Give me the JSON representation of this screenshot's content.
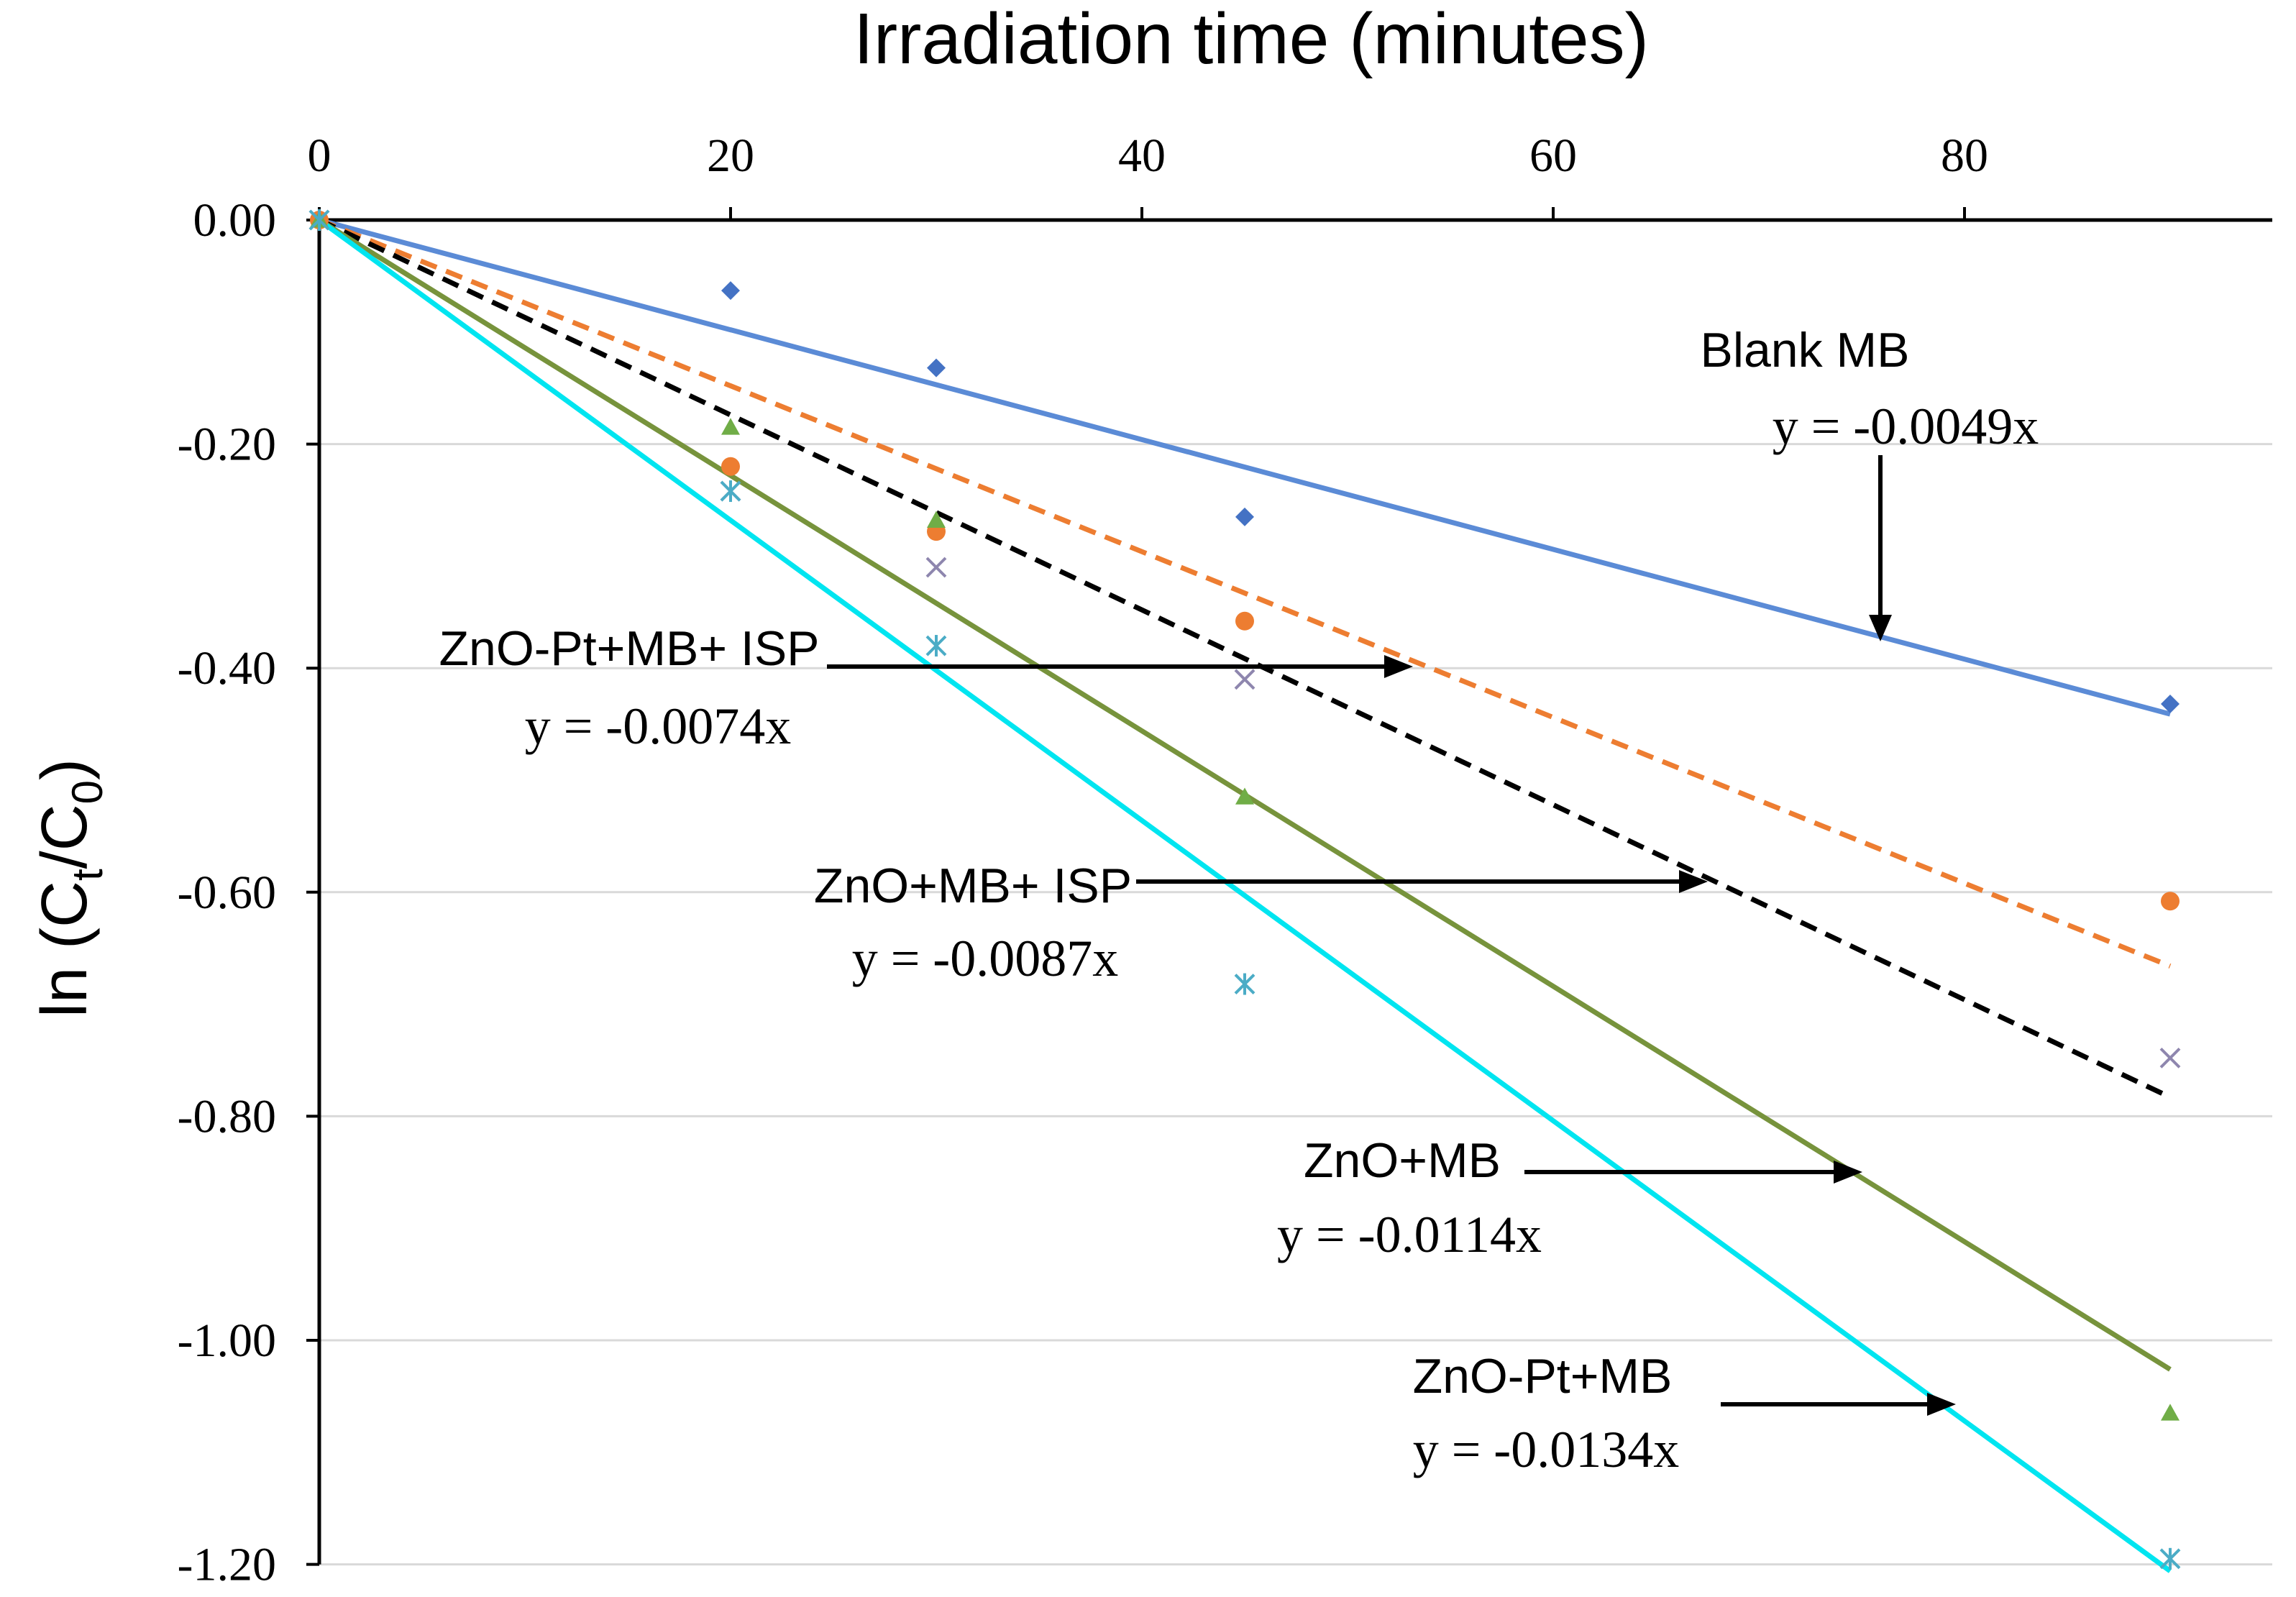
{
  "chart_data": {
    "type": "scatter",
    "title": "Irradiation time (minutes)",
    "xlabel": "Irradiation time (minutes)",
    "ylabel": "ln (C",
    "ylabel_sub1": "t",
    "ylabel_mid": "/C",
    "ylabel_sub2": "0",
    "ylabel_end": ")",
    "xlim": [
      0,
      95
    ],
    "ylim": [
      -1.2,
      0.0
    ],
    "x_ticks": [
      0,
      20,
      40,
      60,
      80
    ],
    "x_tick_labels": [
      "0",
      "20",
      "40",
      "60",
      "80"
    ],
    "y_ticks": [
      0,
      -0.2,
      -0.4,
      -0.6,
      -0.8,
      -1.0,
      -1.2
    ],
    "y_tick_labels": [
      "0.00",
      "-0.20",
      "-0.40",
      "-0.60",
      "-0.80",
      "-1.00",
      "-1.20"
    ],
    "grid": "horizontal",
    "series": [
      {
        "name": "Blank MB",
        "equation": "y = -0.0049x",
        "slope": -0.0049,
        "marker": "diamond",
        "color": "#4472C4",
        "line_color": "#5B8BD6",
        "line_style": "solid",
        "x": [
          0,
          20,
          30,
          45,
          90
        ],
        "y": [
          0,
          -0.063,
          -0.132,
          -0.265,
          -0.432
        ]
      },
      {
        "name": "ZnO-Pt+MB+ ISP",
        "equation": "y = -0.0074x",
        "slope": -0.0074,
        "marker": "circle",
        "color": "#ED7D31",
        "line_color": "#ED7D31",
        "line_style": "dashed",
        "x": [
          0,
          20,
          30,
          45,
          90
        ],
        "y": [
          0,
          -0.22,
          -0.278,
          -0.358,
          -0.608
        ]
      },
      {
        "name": "ZnO+MB+ ISP",
        "equation": "y = -0.0087x",
        "slope": -0.0087,
        "marker": "x",
        "color": "#8E86AE",
        "line_color": "#000000",
        "line_style": "dashed",
        "x": [
          0,
          20,
          30,
          45,
          90
        ],
        "y": [
          0,
          -0.242,
          -0.31,
          -0.41,
          -0.748
        ]
      },
      {
        "name": "ZnO+MB",
        "equation": "y = -0.0114x",
        "slope": -0.0114,
        "marker": "triangle",
        "color": "#70AD47",
        "line_color": "#77933C",
        "line_style": "solid",
        "x": [
          0,
          20,
          30,
          45,
          90
        ],
        "y": [
          0,
          -0.185,
          -0.268,
          -0.515,
          -1.065
        ]
      },
      {
        "name": "ZnO-Pt+MB",
        "equation": "y = -0.0134x",
        "slope": -0.0134,
        "marker": "asterisk",
        "color": "#4BACC6",
        "line_color": "#00E5F0",
        "line_style": "solid",
        "x": [
          0,
          20,
          30,
          45,
          90
        ],
        "y": [
          0,
          -0.242,
          -0.38,
          -0.682,
          -1.195
        ]
      }
    ]
  }
}
